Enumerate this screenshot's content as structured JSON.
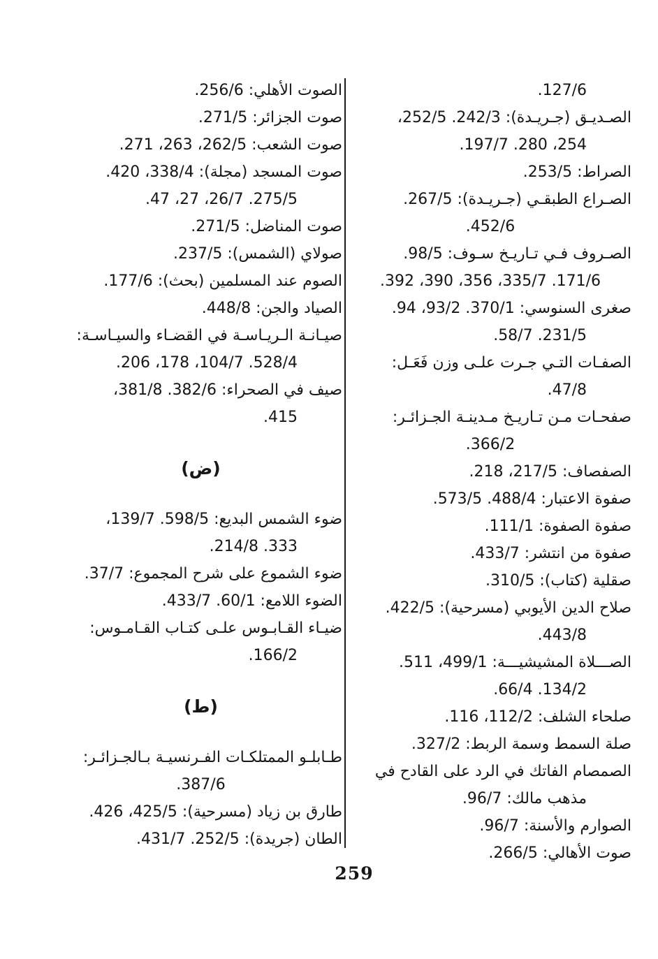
{
  "page": {
    "number": "259",
    "right_column_lines": [
      {
        "text": "127/6.",
        "type": "cont2"
      },
      {
        "text": "الصـديـق (جـريـدة): 242/3. 252/5،",
        "type": "entry"
      },
      {
        "text": "254، 280. 197/7.",
        "type": "cont2"
      },
      {
        "text": "الصراط: 253/5.",
        "type": "entry"
      },
      {
        "text": "الصـراع الطبقـي (جـريـدة): 267/5.",
        "type": "entry"
      },
      {
        "text": "452/6.",
        "type": "cont"
      },
      {
        "text": "الصـروف فـي تـاريـخ سـوف: 98/5.",
        "type": "entry"
      },
      {
        "text": "171/6. 335/7، 356، 390، 392.",
        "type": "cont"
      },
      {
        "text": "صغرى السنوسي: 370/1. 93/2، 94.",
        "type": "entry"
      },
      {
        "text": "231/5. 58/7.",
        "type": "cont2"
      },
      {
        "text": "الصفـات التـي جـرت علـى وزن فَعَـل:",
        "type": "entry"
      },
      {
        "text": "47/8.",
        "type": "cont2"
      },
      {
        "text": "صفحـات مـن تـاريـخ مـدينـة الجـزائـر:",
        "type": "entry"
      },
      {
        "text": "366/2.",
        "type": "cont"
      },
      {
        "text": "الصفصاف: 217/5، 218.",
        "type": "entry"
      },
      {
        "text": "صفوة الاعتبار: 488/4. 573/5.",
        "type": "entry"
      },
      {
        "text": "صفوة الصفوة: 111/1.",
        "type": "entry"
      },
      {
        "text": "صفوة من انتشر: 433/7.",
        "type": "entry"
      },
      {
        "text": "صقلية (كتاب): 310/5.",
        "type": "entry"
      },
      {
        "text": "صلاح الدين الأيوبي (مسرحية): 422/5.",
        "type": "entry"
      },
      {
        "text": "443/8.",
        "type": "cont2"
      },
      {
        "text": "الصـــلاة المشيشيـــة: 499/1، 511.",
        "type": "entry"
      },
      {
        "text": "134/2. 66/4.",
        "type": "cont2"
      },
      {
        "text": "صلحاء الشلف: 112/2، 116.",
        "type": "entry"
      },
      {
        "text": "صلة السمط وسمة الربط: 327/2.",
        "type": "entry"
      },
      {
        "text": "الصمصام الفاتك في الرد على القادح في",
        "type": "entry"
      },
      {
        "text": "مذهب مالك: 96/7.",
        "type": "cont2"
      },
      {
        "text": "الصوارم والأسنة: 96/7.",
        "type": "entry"
      },
      {
        "text": "صوت الأهالي: 266/5.",
        "type": "entry"
      }
    ],
    "left_column_lines": [
      {
        "text": "الصوت الأهلي: 256/6.",
        "type": "entry"
      },
      {
        "text": "صوت الجزائر: 271/5.",
        "type": "entry"
      },
      {
        "text": "صوت الشعب: 262/5، 263، 271.",
        "type": "entry"
      },
      {
        "text": "صوت المسجد (مجلة): 338/4، 420.",
        "type": "entry"
      },
      {
        "text": "275/5. 26/7، 27، 47.",
        "type": "cont2"
      },
      {
        "text": "صوت المناضل: 271/5.",
        "type": "entry"
      },
      {
        "text": "صولاي (الشمس): 237/5.",
        "type": "entry"
      },
      {
        "text": "الصوم عند المسلمين (بحث): 177/6.",
        "type": "entry"
      },
      {
        "text": "الصياد والجن: 448/8.",
        "type": "entry"
      },
      {
        "text": "صيـانـة الـريـاسـة في القضـاء والسيـاسـة:",
        "type": "entry"
      },
      {
        "text": "528/4. 104/7، 178، 206.",
        "type": "cont2"
      },
      {
        "text": "صيف في الصحراء: 382/6. 381/8،",
        "type": "entry"
      },
      {
        "text": "415.",
        "type": "cont2"
      },
      {
        "text": "(ض)",
        "type": "heading"
      },
      {
        "text": "ضوء الشمس البديع: 598/5. 139/7،",
        "type": "entry"
      },
      {
        "text": "333. 214/8.",
        "type": "cont2"
      },
      {
        "text": "ضوء الشموع على شرح المجموع: 37/7.",
        "type": "entry"
      },
      {
        "text": "الضوء اللامع: 60/1. 433/7.",
        "type": "entry"
      },
      {
        "text": "ضيـاء القـابـوس علـى كتـاب القـامـوس:",
        "type": "entry"
      },
      {
        "text": "166/2.",
        "type": "cont2"
      },
      {
        "text": "(ط)",
        "type": "heading"
      },
      {
        "text": "طـابلـو الممتلكـات الفـرنسيـة بـالجـزائـر:",
        "type": "entry"
      },
      {
        "text": "387/6.",
        "type": "cont"
      },
      {
        "text": "طارق بن زياد (مسرحية): 425/5، 426.",
        "type": "entry"
      },
      {
        "text": "الطان (جريدة): 252/5. 431/7.",
        "type": "entry"
      }
    ]
  }
}
